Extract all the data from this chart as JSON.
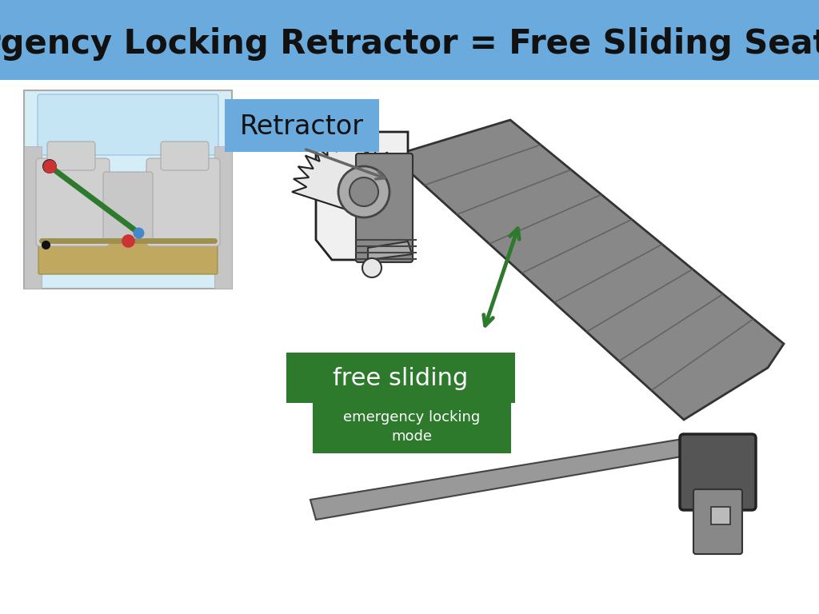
{
  "title": "Emergency Locking Retractor = Free Sliding Seat Belt",
  "title_bg": "#6aaadd",
  "title_color": "#111111",
  "title_fontsize": 30,
  "bg_color": "#ffffff",
  "retractor_label": "Retractor",
  "retractor_label_bg": "#6aaadd",
  "free_sliding_label": "free sliding",
  "free_sliding_bg": "#2d7a2d",
  "emergency_label": "emergency locking\nmode",
  "emergency_bg": "#2d7a2d",
  "label_text_color": "#ffffff",
  "green_color": "#2d7a2d",
  "belt_fill": "#888888",
  "belt_edge": "#333333",
  "mech_fill": "#cccccc",
  "mech_edge": "#222222",
  "seat_bg": "#d5edf7",
  "seat_fill": "#d0d0d0",
  "seat_edge": "#aaaaaa"
}
